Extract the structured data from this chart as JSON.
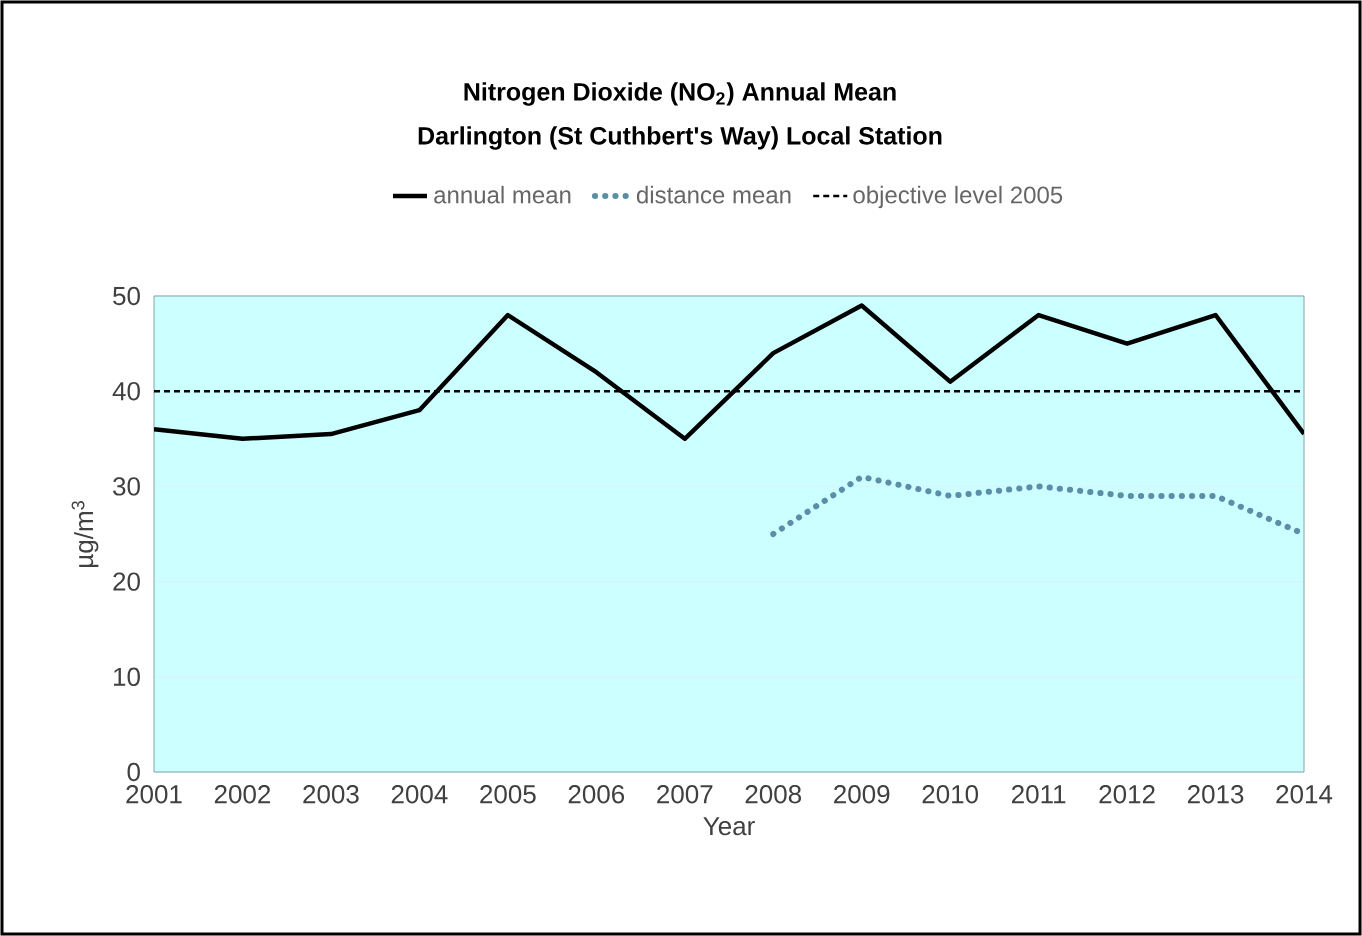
{
  "chart_data": {
    "type": "line",
    "title": "Nitrogen Dioxide (NO$_{2}$) Annual Mean",
    "subtitle": "Darlington (St Cuthbert's Way) Local Station",
    "xlabel": "Year",
    "ylabel": "µg/m$^{3}$",
    "categories": [
      "2001",
      "2002",
      "2003",
      "2004",
      "2005",
      "2006",
      "2007",
      "2008",
      "2009",
      "2010",
      "2011",
      "2012",
      "2013",
      "2014"
    ],
    "series": [
      {
        "name": "annual mean",
        "color": "#000000",
        "line_style": "solid",
        "values": [
          36,
          35,
          35.5,
          38,
          48,
          42,
          35,
          44,
          49,
          41,
          48,
          45,
          48,
          35.5
        ]
      },
      {
        "name": "distance mean",
        "color": "#5b8fa8",
        "line_style": "dotted",
        "values": [
          null,
          null,
          null,
          null,
          null,
          null,
          null,
          25,
          31,
          29,
          30,
          29,
          29,
          25
        ]
      }
    ],
    "ref_lines": [
      {
        "axis": "y",
        "value": 40,
        "label": "objective level 2005",
        "color": "#000000",
        "line_style": "dashed"
      }
    ],
    "ylim": [
      0,
      50
    ],
    "yticks": [
      0,
      10,
      20,
      30,
      40,
      50
    ],
    "grid": "y",
    "legend": "top"
  }
}
